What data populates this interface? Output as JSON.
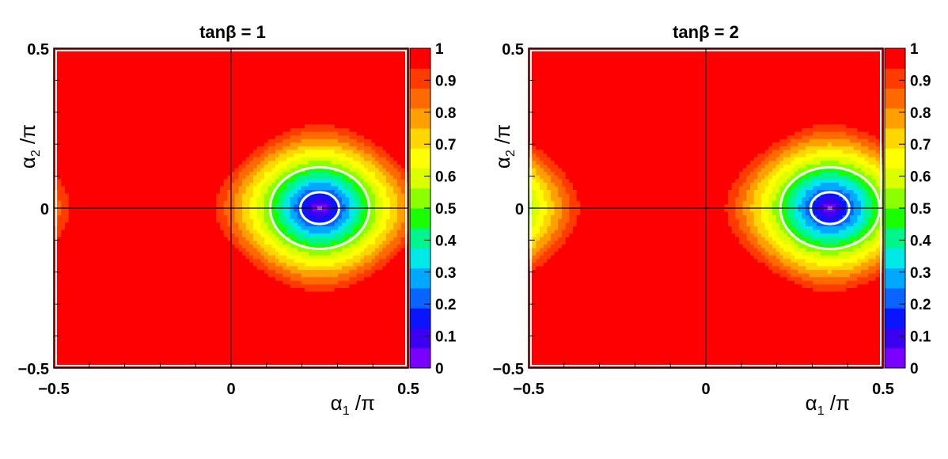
{
  "chart_data": [
    {
      "type": "heatmap",
      "title_prefix": "tanβ",
      "title_value": "1",
      "xlabel_sym": "α",
      "xlabel_sub": "1",
      "xlabel_tail": " /π",
      "ylabel_sym": "α",
      "ylabel_sub": "2",
      "ylabel_tail": " /π",
      "xlim": [
        -0.5,
        0.5
      ],
      "ylim": [
        -0.5,
        0.5
      ],
      "x_ticks": [
        "−0.5",
        "0",
        "0.5"
      ],
      "y_ticks": [
        "0.5",
        "0",
        "−0.5"
      ],
      "zlim": [
        0,
        1
      ],
      "colorbar_ticks": [
        "1",
        "0.9",
        "0.8",
        "0.7",
        "0.6",
        "0.5",
        "0.4",
        "0.3",
        "0.2",
        "0.1",
        "0"
      ],
      "minimum_at": [
        0.25,
        0.0
      ],
      "contour_levels": [
        0.2,
        0.5
      ],
      "grid": false,
      "reference_lines": {
        "x": 0,
        "y": 0
      }
    },
    {
      "type": "heatmap",
      "title_prefix": "tanβ",
      "title_value": "2",
      "xlabel_sym": "α",
      "xlabel_sub": "1",
      "xlabel_tail": " /π",
      "ylabel_sym": "α",
      "ylabel_sub": "2",
      "ylabel_tail": " /π",
      "xlim": [
        -0.5,
        0.5
      ],
      "ylim": [
        -0.5,
        0.5
      ],
      "x_ticks": [
        "−0.5",
        "0",
        "0.5"
      ],
      "y_ticks": [
        "0.5",
        "0",
        "−0.5"
      ],
      "zlim": [
        0,
        1
      ],
      "colorbar_ticks": [
        "1",
        "0.9",
        "0.8",
        "0.7",
        "0.6",
        "0.5",
        "0.4",
        "0.3",
        "0.2",
        "0.1",
        "0"
      ],
      "minimum_at": [
        0.35,
        0.0
      ],
      "contour_levels": [
        0.2,
        0.5
      ],
      "grid": false,
      "reference_lines": {
        "x": 0,
        "y": 0
      }
    }
  ],
  "palette": [
    "#7a00ff",
    "#3c00f0",
    "#0a14ff",
    "#0a64ff",
    "#00a8ff",
    "#00e8e8",
    "#00f58c",
    "#19ff00",
    "#8cff00",
    "#dcff00",
    "#ffff00",
    "#ffd700",
    "#ffa000",
    "#ff6a00",
    "#ff3b00",
    "#ff0000"
  ]
}
